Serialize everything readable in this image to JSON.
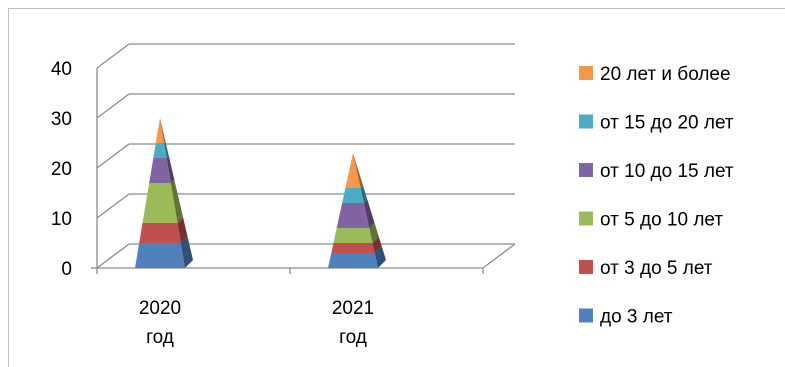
{
  "chart_data": {
    "type": "bar",
    "stacked": true,
    "shape": "pyramid-3d",
    "categories": [
      {
        "line1": "2020",
        "line2": "год"
      },
      {
        "line1": "2021",
        "line2": "год"
      }
    ],
    "yticks": [
      "0",
      "10",
      "20",
      "30",
      "40"
    ],
    "ylim": [
      0,
      40
    ],
    "grid": true,
    "legend_position": "right",
    "series": [
      {
        "name": "до 3 лет",
        "color": "#4f81bd",
        "values": [
          5,
          3
        ]
      },
      {
        "name": "от 3 до 5 лет",
        "color": "#c0504d",
        "values": [
          4,
          2
        ]
      },
      {
        "name": "от 5 до 10 лет",
        "color": "#9bbb59",
        "values": [
          8,
          3
        ]
      },
      {
        "name": "от 10 до 15 лет",
        "color": "#8064a2",
        "values": [
          5,
          5
        ]
      },
      {
        "name": "от 15 до 20 лет",
        "color": "#4bacc6",
        "values": [
          3,
          3
        ]
      },
      {
        "name": "20 лет и более",
        "color": "#f79646",
        "values": [
          5,
          7
        ]
      }
    ]
  }
}
